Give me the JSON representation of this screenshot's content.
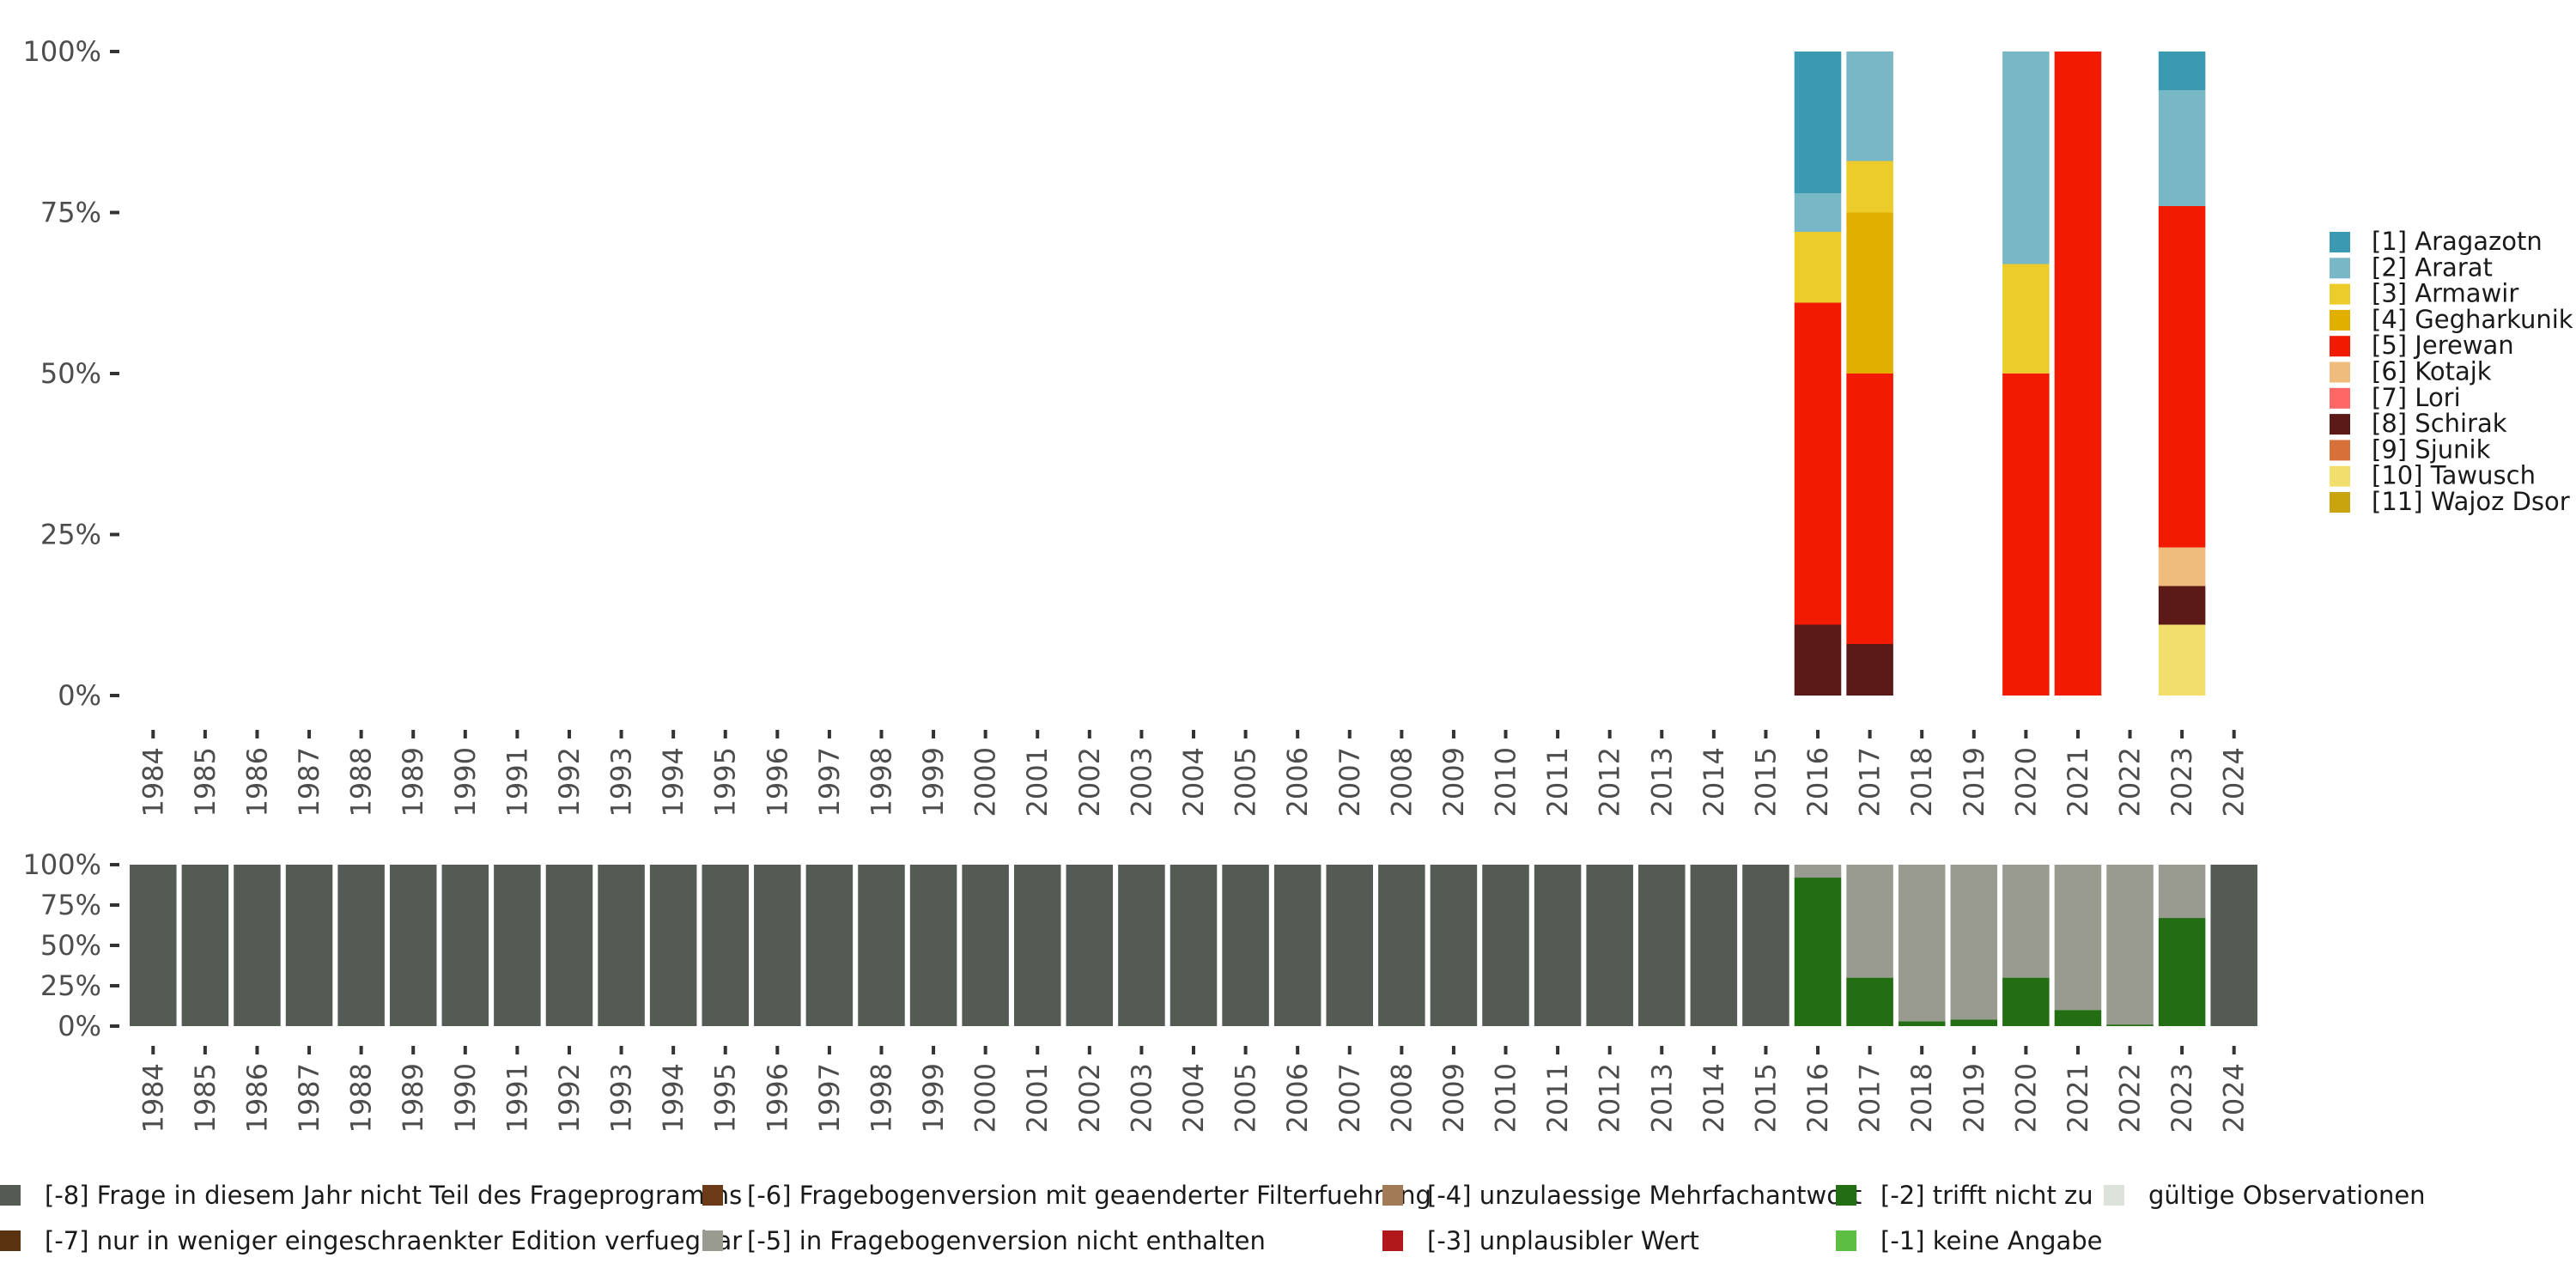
{
  "chart_data": [
    {
      "type": "bar",
      "stacked": true,
      "title": "",
      "xlabel": "",
      "ylabel": "",
      "ylim": [
        0,
        100
      ],
      "y_tick_labels": [
        "0%",
        "25%",
        "50%",
        "75%",
        "100%"
      ],
      "categories": [
        "1984",
        "1985",
        "1986",
        "1987",
        "1988",
        "1989",
        "1990",
        "1991",
        "1992",
        "1993",
        "1994",
        "1995",
        "1996",
        "1997",
        "1998",
        "1999",
        "2000",
        "2001",
        "2002",
        "2003",
        "2004",
        "2005",
        "2006",
        "2007",
        "2008",
        "2009",
        "2010",
        "2011",
        "2012",
        "2013",
        "2014",
        "2015",
        "2016",
        "2017",
        "2018",
        "2019",
        "2020",
        "2021",
        "2022",
        "2023",
        "2024"
      ],
      "legend_position": "right",
      "series": [
        {
          "name": "[1] Aragazotn",
          "color": "#3b9ab2",
          "values": {
            "2016": 22,
            "2023": 6
          }
        },
        {
          "name": "[2] Ararat",
          "color": "#78b7c5",
          "values": {
            "2016": 6,
            "2017": 17,
            "2020": 33,
            "2023": 18
          }
        },
        {
          "name": "[3] Armawir",
          "color": "#ebcc2a",
          "values": {
            "2016": 11,
            "2017": 8,
            "2020": 17
          }
        },
        {
          "name": "[4] Gegharkunik",
          "color": "#e1af00",
          "values": {
            "2017": 25
          }
        },
        {
          "name": "[5] Jerewan",
          "color": "#f21a00",
          "values": {
            "2016": 50,
            "2017": 42,
            "2020": 50,
            "2021": 100,
            "2023": 53
          }
        },
        {
          "name": "[6] Kotajk",
          "color": "#f0bc7e",
          "values": {
            "2023": 6
          }
        },
        {
          "name": "[7] Lori",
          "color": "#ff6666",
          "values": {}
        },
        {
          "name": "[8] Schirak",
          "color": "#5b1a18",
          "values": {
            "2016": 11,
            "2017": 8,
            "2023": 6
          }
        },
        {
          "name": "[9] Sjunik",
          "color": "#d8703a",
          "values": {}
        },
        {
          "name": "[10] Tawusch",
          "color": "#f2de6c",
          "values": {
            "2023": 11
          }
        },
        {
          "name": "[11] Wajoz Dsor",
          "color": "#c9a40f",
          "values": {}
        }
      ],
      "stack_order_bottom_to_top": [
        "[10] Tawusch",
        "[8] Schirak",
        "[6] Kotajk",
        "[5] Jerewan",
        "[4] Gegharkunik",
        "[3] Armawir",
        "[2] Ararat",
        "[1] Aragazotn"
      ]
    },
    {
      "type": "bar",
      "stacked": true,
      "title": "",
      "xlabel": "",
      "ylabel": "",
      "ylim": [
        0,
        100
      ],
      "y_tick_labels": [
        "0%",
        "25%",
        "50%",
        "75%",
        "100%"
      ],
      "categories": [
        "1984",
        "1985",
        "1986",
        "1987",
        "1988",
        "1989",
        "1990",
        "1991",
        "1992",
        "1993",
        "1994",
        "1995",
        "1996",
        "1997",
        "1998",
        "1999",
        "2000",
        "2001",
        "2002",
        "2003",
        "2004",
        "2005",
        "2006",
        "2007",
        "2008",
        "2009",
        "2010",
        "2011",
        "2012",
        "2013",
        "2014",
        "2015",
        "2016",
        "2017",
        "2018",
        "2019",
        "2020",
        "2021",
        "2022",
        "2023",
        "2024"
      ],
      "legend_position": "bottom",
      "series": [
        {
          "name": "[-8] Frage in diesem Jahr nicht Teil des Frageprogramms",
          "color": "#545b54",
          "values": {
            "1984": 100,
            "1985": 100,
            "1986": 100,
            "1987": 100,
            "1988": 100,
            "1989": 100,
            "1990": 100,
            "1991": 100,
            "1992": 100,
            "1993": 100,
            "1994": 100,
            "1995": 100,
            "1996": 100,
            "1997": 100,
            "1998": 100,
            "1999": 100,
            "2000": 100,
            "2001": 100,
            "2002": 100,
            "2003": 100,
            "2004": 100,
            "2005": 100,
            "2006": 100,
            "2007": 100,
            "2008": 100,
            "2009": 100,
            "2010": 100,
            "2011": 100,
            "2012": 100,
            "2013": 100,
            "2014": 100,
            "2015": 100,
            "2024": 100
          }
        },
        {
          "name": "[-7] nur in weniger eingeschraenkter Edition verfuegbar",
          "color": "#5c3310",
          "values": {}
        },
        {
          "name": "[-6] Fragebogenversion mit geaenderter Filterfuehrung",
          "color": "#6b3a17",
          "values": {}
        },
        {
          "name": "[-5] in Fragebogenversion nicht enthalten",
          "color": "#999b91",
          "values": {
            "2016": 8,
            "2017": 70,
            "2018": 97,
            "2019": 96,
            "2020": 70,
            "2021": 90,
            "2022": 99,
            "2023": 33
          }
        },
        {
          "name": "[-4] unzulaessige Mehrfachantwort",
          "color": "#a27a55",
          "values": {}
        },
        {
          "name": "[-3] unplausibler Wert",
          "color": "#b0181c",
          "values": {}
        },
        {
          "name": "[-2] trifft nicht zu",
          "color": "#236e12",
          "values": {
            "2016": 92,
            "2017": 30,
            "2018": 3,
            "2019": 4,
            "2020": 30,
            "2021": 10,
            "2022": 1,
            "2023": 67
          }
        },
        {
          "name": "[-1] keine Angabe",
          "color": "#5cbf43",
          "values": {}
        },
        {
          "name": "gültige Observationen",
          "color": "#dde2da",
          "values": {}
        }
      ],
      "stack_order_bottom_to_top": [
        "[-2] trifft nicht zu",
        "[-5] in Fragebogenversion nicht enthalten",
        "[-8] Frage in diesem Jahr nicht Teil des Frageprogramms"
      ]
    }
  ]
}
